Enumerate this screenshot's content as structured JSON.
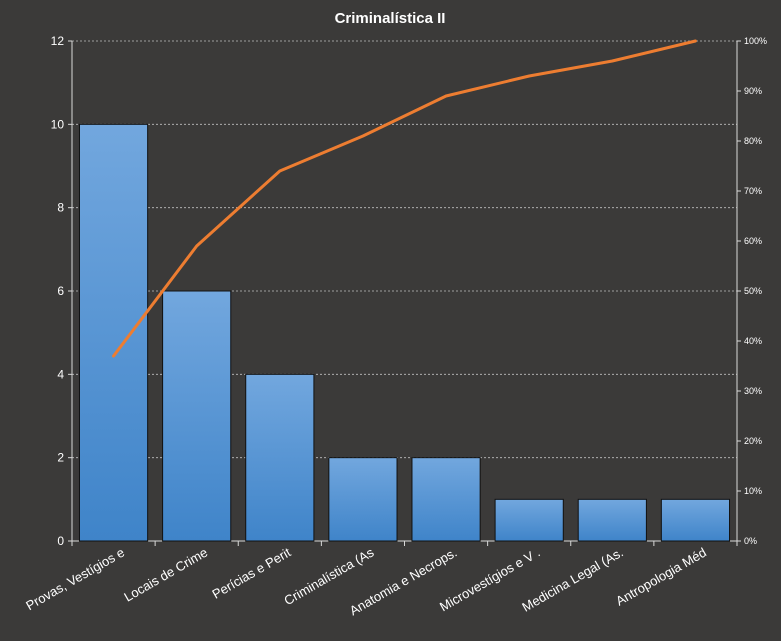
{
  "chart_data": {
    "type": "bar",
    "title": "Criminalística  II",
    "xlabel": "",
    "ylabel": "",
    "categories": [
      "Provas, Vestígios e",
      "Locais de Crime",
      "Perícias e Perit",
      "Criminalística (As",
      "Anatomia  e Necrops.",
      "Microvestígios e V .",
      "Medicina Legal (As.",
      "Antropologia  Méd"
    ],
    "series": [
      {
        "type": "bar",
        "values": [
          10,
          6,
          4,
          2,
          2,
          1,
          1,
          1
        ]
      },
      {
        "type": "line",
        "axis": "secondary",
        "values": [
          37,
          59,
          74,
          81,
          89,
          93,
          96,
          100
        ]
      }
    ],
    "ylim": [
      0,
      12
    ],
    "yticks": [
      "0",
      "2",
      "4",
      "6",
      "8",
      "10",
      "12"
    ],
    "y2lim": [
      0,
      100
    ],
    "y2ticks": [
      "0%",
      "10%",
      "20%",
      "30%",
      "40%",
      "50%",
      "60%",
      "70%",
      "80%",
      "90%",
      "100%"
    ],
    "grid": true,
    "legend": "none",
    "colors": {
      "background": "#3b3a39",
      "bar_top": "#72a7de",
      "bar_bottom": "#3f84c9",
      "bar_edge": "#111111",
      "line": "#ed7d31",
      "grid": "#bfbfbf",
      "text": "#ffffff"
    }
  }
}
